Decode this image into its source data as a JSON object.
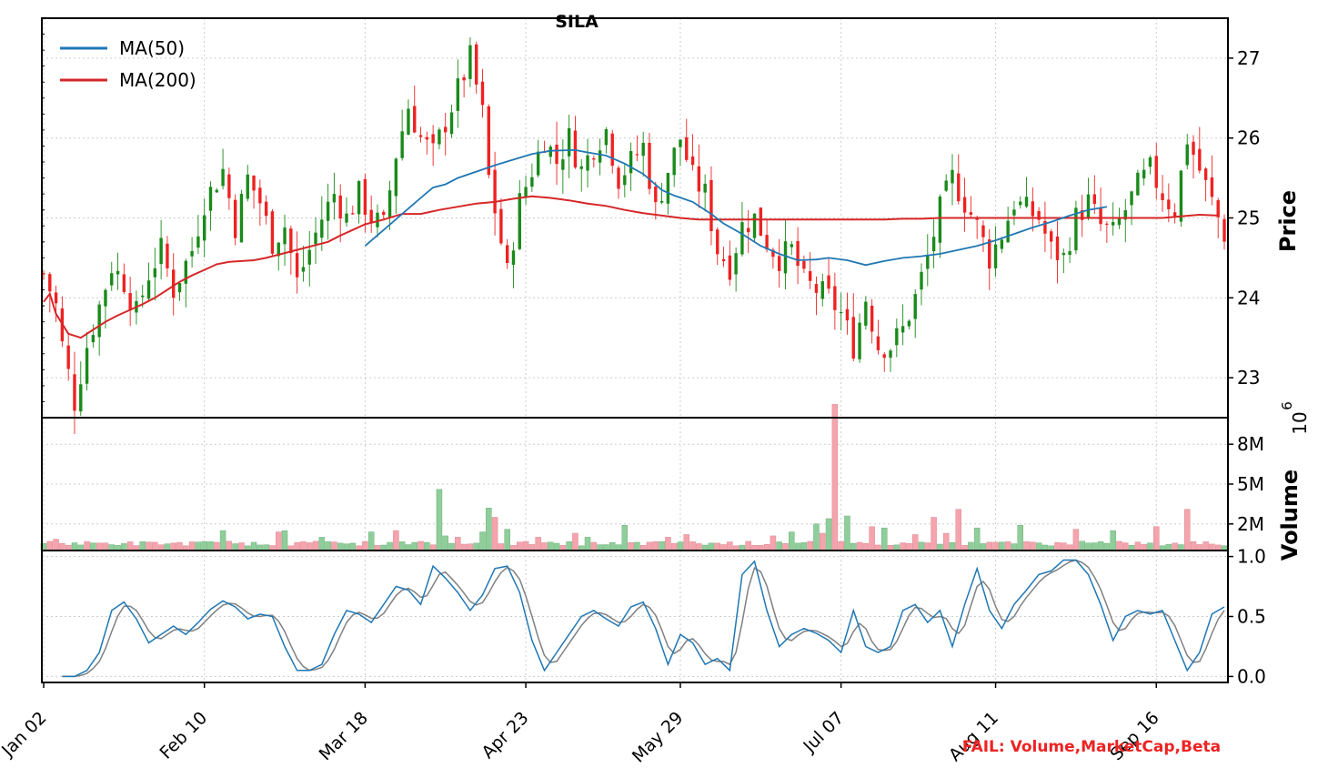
{
  "chart_data": {
    "type": "candlestick",
    "title": "SILA",
    "footer_note": "FAIL: Volume,MarketCap,Beta",
    "colors": {
      "up": "#1a8a1a",
      "down": "#ee2222",
      "ma50": "#1f77b4",
      "ma200": "#d62728",
      "stoch_k": "#1f77b4",
      "stoch_d": "#808080",
      "footer": "#ee2222"
    },
    "x_tick_labels": [
      "Jan 02",
      "Feb 10",
      "Mar 18",
      "Apr 23",
      "May 29",
      "Jul 07",
      "Aug 11",
      "Sep 16"
    ],
    "x_tick_index": [
      0,
      26,
      52,
      78,
      103,
      129,
      154,
      180
    ],
    "n_bars": 192,
    "grid": true,
    "legend": {
      "placement": "top-left",
      "entries": [
        "MA(50)",
        "MA(200)"
      ]
    },
    "panels": {
      "price": {
        "ylabel": "Price",
        "ylim": [
          22.5,
          27.5
        ],
        "ticks": [
          23,
          24,
          25,
          26,
          27
        ],
        "tick_labels": [
          "23",
          "24",
          "25",
          "26",
          "27"
        ]
      },
      "volume": {
        "ylabel": "Volume",
        "ylim": [
          0,
          10
        ],
        "multiplier_label": "10",
        "multiplier_exp": "6",
        "ticks": [
          2,
          5,
          8
        ],
        "tick_labels": [
          "2M",
          "5M",
          "8M"
        ]
      },
      "stochastic": {
        "ylim": [
          -0.05,
          1.05
        ],
        "ticks": [
          0.0,
          0.5,
          1.0
        ],
        "tick_labels": [
          "0.0",
          "0.5",
          "1.0"
        ]
      }
    },
    "close_anchors": [
      [
        0,
        24.3
      ],
      [
        1,
        24.1
      ],
      [
        2,
        23.9
      ],
      [
        3,
        23.4
      ],
      [
        5,
        22.7
      ],
      [
        7,
        23.4
      ],
      [
        9,
        23.9
      ],
      [
        11,
        24.4
      ],
      [
        13,
        24.2
      ],
      [
        15,
        23.8
      ],
      [
        17,
        24.3
      ],
      [
        19,
        24.6
      ],
      [
        21,
        24.1
      ],
      [
        24,
        24.6
      ],
      [
        26,
        25.2
      ],
      [
        29,
        25.6
      ],
      [
        31,
        24.9
      ],
      [
        33,
        25.5
      ],
      [
        35,
        25.2
      ],
      [
        37,
        24.7
      ],
      [
        39,
        24.9
      ],
      [
        41,
        24.2
      ],
      [
        43,
        24.6
      ],
      [
        45,
        25.0
      ],
      [
        47,
        25.3
      ],
      [
        49,
        25.0
      ],
      [
        51,
        25.3
      ],
      [
        53,
        25.0
      ],
      [
        55,
        24.9
      ],
      [
        57,
        25.8
      ],
      [
        59,
        26.4
      ],
      [
        61,
        26.0
      ],
      [
        63,
        25.8
      ],
      [
        65,
        26.2
      ],
      [
        67,
        26.6
      ],
      [
        69,
        27.0
      ],
      [
        71,
        26.3
      ],
      [
        72,
        25.5
      ],
      [
        74,
        24.7
      ],
      [
        75,
        24.3
      ],
      [
        77,
        25.2
      ],
      [
        79,
        25.6
      ],
      [
        81,
        26.0
      ],
      [
        83,
        25.7
      ],
      [
        85,
        26.0
      ],
      [
        87,
        25.6
      ],
      [
        89,
        25.9
      ],
      [
        91,
        26.1
      ],
      [
        93,
        25.5
      ],
      [
        95,
        25.7
      ],
      [
        97,
        25.9
      ],
      [
        99,
        25.1
      ],
      [
        101,
        25.6
      ],
      [
        103,
        26.0
      ],
      [
        105,
        25.5
      ],
      [
        107,
        25.3
      ],
      [
        109,
        24.6
      ],
      [
        111,
        24.4
      ],
      [
        113,
        24.9
      ],
      [
        115,
        25.0
      ],
      [
        117,
        24.7
      ],
      [
        119,
        24.5
      ],
      [
        121,
        24.6
      ],
      [
        123,
        24.2
      ],
      [
        125,
        24.1
      ],
      [
        127,
        24.0
      ],
      [
        129,
        23.8
      ],
      [
        131,
        23.4
      ],
      [
        133,
        24.0
      ],
      [
        135,
        23.4
      ],
      [
        137,
        23.4
      ],
      [
        139,
        23.6
      ],
      [
        141,
        24.0
      ],
      [
        143,
        24.5
      ],
      [
        145,
        25.1
      ],
      [
        147,
        25.5
      ],
      [
        149,
        25.2
      ],
      [
        151,
        24.9
      ],
      [
        153,
        24.5
      ],
      [
        155,
        24.8
      ],
      [
        157,
        25.2
      ],
      [
        159,
        25.1
      ],
      [
        161,
        25.0
      ],
      [
        163,
        24.6
      ],
      [
        165,
        24.5
      ],
      [
        167,
        25.0
      ],
      [
        169,
        25.2
      ],
      [
        171,
        24.9
      ],
      [
        173,
        24.8
      ],
      [
        175,
        25.1
      ],
      [
        177,
        25.4
      ],
      [
        179,
        25.6
      ],
      [
        181,
        25.3
      ],
      [
        183,
        25.1
      ],
      [
        185,
        26.0
      ],
      [
        187,
        25.6
      ],
      [
        189,
        25.2
      ],
      [
        191,
        24.8
      ]
    ],
    "ma50_points": [
      [
        52,
        24.65
      ],
      [
        55,
        24.85
      ],
      [
        58,
        25.05
      ],
      [
        61,
        25.25
      ],
      [
        63,
        25.38
      ],
      [
        65,
        25.42
      ],
      [
        67,
        25.5
      ],
      [
        70,
        25.58
      ],
      [
        73,
        25.66
      ],
      [
        76,
        25.73
      ],
      [
        79,
        25.8
      ],
      [
        82,
        25.84
      ],
      [
        86,
        25.85
      ],
      [
        88,
        25.82
      ],
      [
        91,
        25.78
      ],
      [
        94,
        25.68
      ],
      [
        97,
        25.55
      ],
      [
        100,
        25.35
      ],
      [
        102,
        25.28
      ],
      [
        105,
        25.2
      ],
      [
        108,
        25.05
      ],
      [
        110,
        24.93
      ],
      [
        113,
        24.8
      ],
      [
        116,
        24.65
      ],
      [
        119,
        24.55
      ],
      [
        122,
        24.47
      ],
      [
        125,
        24.48
      ],
      [
        127,
        24.5
      ],
      [
        130,
        24.47
      ],
      [
        133,
        24.41
      ],
      [
        136,
        24.46
      ],
      [
        139,
        24.5
      ],
      [
        142,
        24.52
      ],
      [
        145,
        24.55
      ],
      [
        148,
        24.6
      ],
      [
        151,
        24.65
      ],
      [
        154,
        24.72
      ],
      [
        157,
        24.8
      ],
      [
        160,
        24.88
      ],
      [
        163,
        24.95
      ],
      [
        166,
        25.03
      ],
      [
        169,
        25.1
      ],
      [
        172,
        25.14
      ]
    ],
    "ma200_points": [
      [
        0,
        23.95
      ],
      [
        1,
        24.05
      ],
      [
        2,
        23.8
      ],
      [
        4,
        23.55
      ],
      [
        6,
        23.5
      ],
      [
        8,
        23.6
      ],
      [
        10,
        23.7
      ],
      [
        12,
        23.78
      ],
      [
        14,
        23.85
      ],
      [
        16,
        23.92
      ],
      [
        18,
        24.0
      ],
      [
        20,
        24.1
      ],
      [
        22,
        24.2
      ],
      [
        24,
        24.28
      ],
      [
        26,
        24.35
      ],
      [
        28,
        24.42
      ],
      [
        30,
        24.45
      ],
      [
        32,
        24.46
      ],
      [
        34,
        24.47
      ],
      [
        36,
        24.5
      ],
      [
        38,
        24.54
      ],
      [
        40,
        24.58
      ],
      [
        42,
        24.62
      ],
      [
        44,
        24.66
      ],
      [
        46,
        24.7
      ],
      [
        48,
        24.78
      ],
      [
        50,
        24.85
      ],
      [
        52,
        24.92
      ],
      [
        55,
        24.98
      ],
      [
        58,
        25.05
      ],
      [
        61,
        25.05
      ],
      [
        64,
        25.1
      ],
      [
        67,
        25.14
      ],
      [
        70,
        25.18
      ],
      [
        73,
        25.2
      ],
      [
        76,
        25.24
      ],
      [
        79,
        25.27
      ],
      [
        82,
        25.25
      ],
      [
        85,
        25.22
      ],
      [
        88,
        25.18
      ],
      [
        91,
        25.15
      ],
      [
        94,
        25.1
      ],
      [
        97,
        25.06
      ],
      [
        100,
        25.03
      ],
      [
        103,
        25.0
      ],
      [
        106,
        24.98
      ],
      [
        109,
        24.98
      ],
      [
        112,
        24.98
      ],
      [
        115,
        24.98
      ],
      [
        118,
        24.98
      ],
      [
        121,
        24.98
      ],
      [
        124,
        24.98
      ],
      [
        127,
        24.98
      ],
      [
        130,
        24.98
      ],
      [
        133,
        24.98
      ],
      [
        136,
        24.98
      ],
      [
        139,
        24.99
      ],
      [
        142,
        24.99
      ],
      [
        145,
        25.0
      ],
      [
        148,
        25.0
      ],
      [
        151,
        25.0
      ],
      [
        154,
        25.0
      ],
      [
        157,
        25.0
      ],
      [
        160,
        25.0
      ],
      [
        163,
        25.0
      ],
      [
        166,
        25.0
      ],
      [
        169,
        25.0
      ],
      [
        172,
        25.0
      ],
      [
        175,
        25.0
      ],
      [
        178,
        25.0
      ],
      [
        181,
        25.0
      ],
      [
        184,
        25.02
      ],
      [
        187,
        25.04
      ],
      [
        190,
        25.03
      ]
    ],
    "volume_base": 0.35,
    "volume_spikes": [
      [
        2,
        0.85
      ],
      [
        29,
        1.5
      ],
      [
        38,
        1.4
      ],
      [
        39,
        1.5
      ],
      [
        45,
        1.0
      ],
      [
        53,
        1.4
      ],
      [
        57,
        1.5
      ],
      [
        64,
        4.6
      ],
      [
        65,
        1.1
      ],
      [
        67,
        1.0
      ],
      [
        71,
        1.4
      ],
      [
        72,
        3.2
      ],
      [
        73,
        2.5
      ],
      [
        75,
        1.6
      ],
      [
        80,
        1.0
      ],
      [
        86,
        1.3
      ],
      [
        88,
        1.0
      ],
      [
        94,
        1.9
      ],
      [
        101,
        1.0
      ],
      [
        104,
        1.2
      ],
      [
        118,
        1.1
      ],
      [
        121,
        1.4
      ],
      [
        125,
        2.0
      ],
      [
        126,
        1.3
      ],
      [
        127,
        2.4
      ],
      [
        128,
        11.0
      ],
      [
        130,
        2.6
      ],
      [
        134,
        1.8
      ],
      [
        136,
        1.7
      ],
      [
        141,
        1.2
      ],
      [
        144,
        2.5
      ],
      [
        146,
        1.3
      ],
      [
        148,
        3.1
      ],
      [
        151,
        1.7
      ],
      [
        158,
        1.9
      ],
      [
        167,
        1.6
      ],
      [
        173,
        1.5
      ],
      [
        180,
        1.8
      ],
      [
        185,
        3.1
      ]
    ],
    "stoch_k_anchors": [
      [
        3,
        0.0
      ],
      [
        5,
        0.0
      ],
      [
        7,
        0.05
      ],
      [
        9,
        0.2
      ],
      [
        11,
        0.55
      ],
      [
        13,
        0.62
      ],
      [
        15,
        0.48
      ],
      [
        17,
        0.28
      ],
      [
        19,
        0.35
      ],
      [
        21,
        0.42
      ],
      [
        23,
        0.35
      ],
      [
        25,
        0.45
      ],
      [
        27,
        0.56
      ],
      [
        29,
        0.63
      ],
      [
        31,
        0.58
      ],
      [
        33,
        0.48
      ],
      [
        35,
        0.52
      ],
      [
        37,
        0.5
      ],
      [
        39,
        0.25
      ],
      [
        41,
        0.05
      ],
      [
        43,
        0.05
      ],
      [
        45,
        0.1
      ],
      [
        47,
        0.35
      ],
      [
        49,
        0.55
      ],
      [
        51,
        0.52
      ],
      [
        53,
        0.45
      ],
      [
        55,
        0.6
      ],
      [
        57,
        0.75
      ],
      [
        59,
        0.72
      ],
      [
        61,
        0.6
      ],
      [
        63,
        0.92
      ],
      [
        65,
        0.82
      ],
      [
        67,
        0.7
      ],
      [
        69,
        0.55
      ],
      [
        71,
        0.68
      ],
      [
        73,
        0.9
      ],
      [
        75,
        0.92
      ],
      [
        77,
        0.7
      ],
      [
        79,
        0.3
      ],
      [
        81,
        0.05
      ],
      [
        83,
        0.2
      ],
      [
        85,
        0.35
      ],
      [
        87,
        0.5
      ],
      [
        89,
        0.55
      ],
      [
        91,
        0.48
      ],
      [
        93,
        0.42
      ],
      [
        95,
        0.58
      ],
      [
        97,
        0.62
      ],
      [
        99,
        0.4
      ],
      [
        101,
        0.1
      ],
      [
        103,
        0.35
      ],
      [
        105,
        0.28
      ],
      [
        107,
        0.1
      ],
      [
        109,
        0.15
      ],
      [
        111,
        0.05
      ],
      [
        113,
        0.85
      ],
      [
        115,
        0.96
      ],
      [
        117,
        0.55
      ],
      [
        119,
        0.25
      ],
      [
        121,
        0.35
      ],
      [
        123,
        0.4
      ],
      [
        125,
        0.36
      ],
      [
        127,
        0.3
      ],
      [
        129,
        0.2
      ],
      [
        131,
        0.55
      ],
      [
        133,
        0.25
      ],
      [
        135,
        0.2
      ],
      [
        137,
        0.25
      ],
      [
        139,
        0.55
      ],
      [
        141,
        0.6
      ],
      [
        143,
        0.45
      ],
      [
        145,
        0.55
      ],
      [
        147,
        0.25
      ],
      [
        149,
        0.6
      ],
      [
        151,
        0.9
      ],
      [
        153,
        0.55
      ],
      [
        155,
        0.4
      ],
      [
        157,
        0.6
      ],
      [
        159,
        0.72
      ],
      [
        161,
        0.85
      ],
      [
        163,
        0.88
      ],
      [
        165,
        0.97
      ],
      [
        167,
        0.97
      ],
      [
        169,
        0.85
      ],
      [
        171,
        0.6
      ],
      [
        173,
        0.3
      ],
      [
        175,
        0.5
      ],
      [
        177,
        0.55
      ],
      [
        179,
        0.52
      ],
      [
        181,
        0.55
      ],
      [
        183,
        0.3
      ],
      [
        185,
        0.05
      ],
      [
        187,
        0.2
      ],
      [
        189,
        0.52
      ],
      [
        191,
        0.58
      ]
    ],
    "stoch_tail_anchors": [
      [
        140,
        0.5
      ],
      [
        143,
        0.55
      ],
      [
        146,
        0.48
      ],
      [
        149,
        0.55
      ],
      [
        152,
        0.5
      ],
      [
        155,
        0.62
      ],
      [
        158,
        0.55
      ],
      [
        161,
        0.6
      ],
      [
        163,
        0.72
      ],
      [
        165,
        0.9
      ],
      [
        166,
        0.95
      ],
      [
        168,
        0.82
      ],
      [
        170,
        0.6
      ],
      [
        172,
        0.55
      ],
      [
        174,
        0.62
      ],
      [
        176,
        0.8
      ],
      [
        178,
        0.85
      ],
      [
        180,
        0.75
      ],
      [
        181,
        0.25
      ],
      [
        182,
        0.05
      ],
      [
        183,
        0.0
      ],
      [
        184,
        0.02
      ]
    ]
  }
}
